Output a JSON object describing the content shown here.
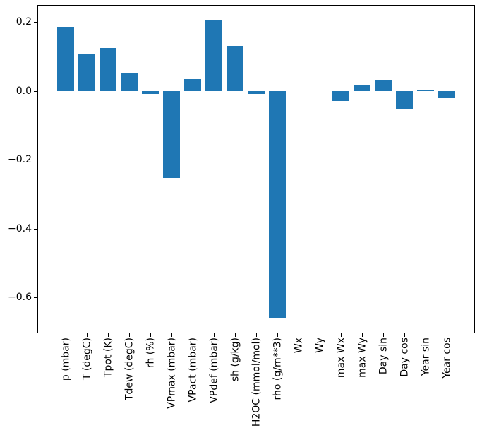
{
  "colors": {
    "bar": "#1f77b4",
    "axis": "#000000",
    "background": "#ffffff",
    "text": "#000000"
  },
  "chart_data": {
    "type": "bar",
    "title": "",
    "xlabel": "",
    "ylabel": "",
    "grid": false,
    "legend": null,
    "x_tick_rotation": 90,
    "bar_width": 0.8,
    "ylim": [
      -0.705,
      0.25
    ],
    "xlim": [
      -1.34,
      19.34
    ],
    "yticks": [
      0.2,
      0.0,
      -0.2,
      -0.4,
      -0.6
    ],
    "ytick_labels": [
      "0.2",
      "0.0",
      "−0.2",
      "−0.4",
      "−0.6"
    ],
    "categories": [
      "p (mbar)",
      "T (degC)",
      "Tpot (K)",
      "Tdew (degC)",
      "rh (%)",
      "VPmax (mbar)",
      "VPact (mbar)",
      "VPdef (mbar)",
      "sh (g/kg)",
      "H2OC (mmol/mol)",
      "rho (g/m**3)",
      "Wx",
      "Wy",
      "max Wx",
      "max Wy",
      "Day sin",
      "Day cos",
      "Year sin",
      "Year cos"
    ],
    "values": [
      0.186,
      0.107,
      0.125,
      0.053,
      -0.009,
      -0.254,
      0.035,
      0.206,
      0.131,
      -0.008,
      -0.661,
      0.0,
      0.0,
      -0.029,
      0.016,
      0.032,
      -0.053,
      0.002,
      -0.022
    ]
  }
}
